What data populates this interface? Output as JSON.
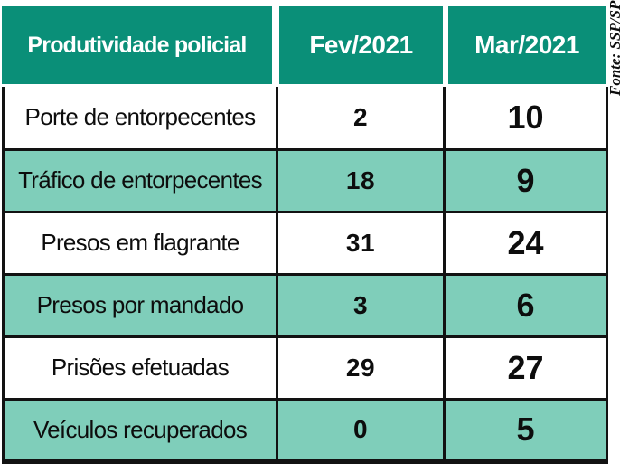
{
  "source_note": "Fonte: SSP/SP",
  "colors": {
    "header_teal": "#0a8f78",
    "row_teal": "#7fceba",
    "border_black": "#121212",
    "header_text": "#ffffff",
    "body_text": "#0d0d0d"
  },
  "chart_data": {
    "type": "table",
    "title": "Produtividade policial",
    "columns": [
      "Produtividade policial",
      "Fev/2021",
      "Mar/2021"
    ],
    "categories": [
      "Porte de entorpecentes",
      "Tráfico de entorpecentes",
      "Presos em flagrante",
      "Presos por mandado",
      "Prisões efetuadas",
      "Veículos recuperados"
    ],
    "series": [
      {
        "name": "Fev/2021",
        "values": [
          2,
          18,
          31,
          3,
          29,
          0
        ]
      },
      {
        "name": "Mar/2021",
        "values": [
          10,
          9,
          24,
          6,
          27,
          5
        ]
      }
    ]
  },
  "table": {
    "header": {
      "col_label": "Produtividade policial",
      "col_fev": "Fev/2021",
      "col_mar": "Mar/2021"
    },
    "rows": [
      {
        "label": "Porte de entorpecentes",
        "fev": "2",
        "mar": "10"
      },
      {
        "label": "Tráfico de entorpecentes",
        "fev": "18",
        "mar": "9"
      },
      {
        "label": "Presos em flagrante",
        "fev": "31",
        "mar": "24"
      },
      {
        "label": "Presos por mandado",
        "fev": "3",
        "mar": "6"
      },
      {
        "label": "Prisões efetuadas",
        "fev": "29",
        "mar": "27"
      },
      {
        "label": "Veículos recuperados",
        "fev": "0",
        "mar": "5"
      }
    ]
  }
}
